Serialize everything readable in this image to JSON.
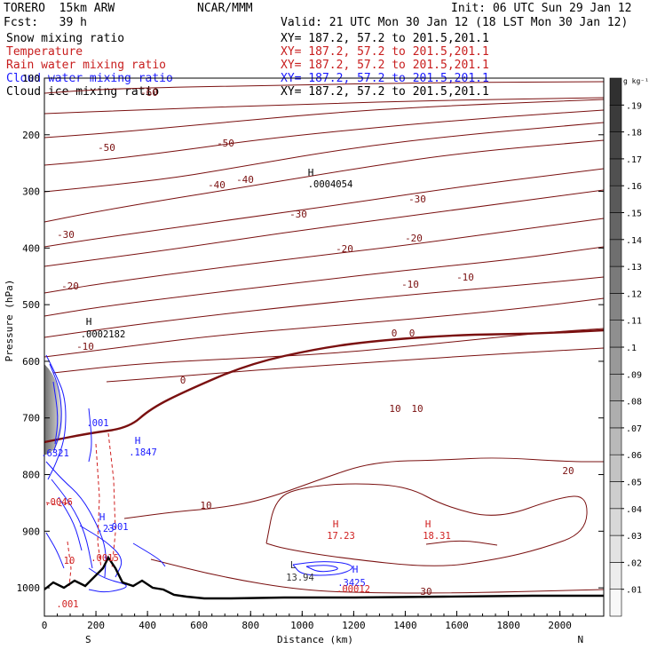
{
  "header": {
    "model": "TORERO  15km ARW",
    "center": "NCAR/MMM",
    "init": "Init: 06 UTC Sun 29 Jan 12",
    "fcst": "Fcst:   39 h",
    "valid": "Valid: 21 UTC Mon 30 Jan 12 (18 LST Mon 30 Jan 12)"
  },
  "fields": [
    {
      "name": "Snow mixing ratio",
      "xy": "XY= 187.2, 57.2 to 201.5,201.1",
      "color": "#000000"
    },
    {
      "name": "Temperature",
      "xy": "XY= 187.2, 57.2 to 201.5,201.1",
      "color": "#c81e1e"
    },
    {
      "name": "Rain water mixing ratio",
      "xy": "XY= 187.2, 57.2 to 201.5,201.1",
      "color": "#c81e1e"
    },
    {
      "name": "Cloud water mixing ratio",
      "xy": "XY= 187.2, 57.2 to 201.5,201.1",
      "color": "#1a1aff"
    },
    {
      "name": "Cloud ice mixing ratio",
      "xy": "XY= 187.2, 57.2 to 201.5,201.1",
      "color": "#000000"
    }
  ],
  "chart_data": {
    "type": "cross-section",
    "xlabel": "Distance (km)",
    "ylabel": "Pressure (hPa)",
    "xlim": [
      0,
      2170
    ],
    "ylim": [
      1050,
      100
    ],
    "x_ticks": [
      0,
      200,
      400,
      600,
      800,
      1000,
      1200,
      1400,
      1600,
      1800,
      2000
    ],
    "y_ticks": [
      100,
      200,
      300,
      400,
      500,
      600,
      700,
      800,
      900,
      1000
    ],
    "end_labels": {
      "left": "S",
      "right": "N"
    },
    "colorbar": {
      "unit": "g kg⁻¹",
      "levels": [
        ".01",
        ".02",
        ".03",
        ".04",
        ".05",
        ".06",
        ".07",
        ".08",
        ".09",
        ".1",
        ".11",
        ".12",
        ".13",
        ".14",
        ".15",
        ".16",
        ".17",
        ".18",
        ".19"
      ]
    },
    "temperature_labels": [
      "-60",
      "-50",
      "-50",
      "-40",
      "-40",
      "-30",
      "-30",
      "-30",
      "-20",
      "-20",
      "-20",
      "-10",
      "-10",
      "-10",
      "0",
      "0",
      "0",
      "10",
      "10",
      "10",
      "20",
      "30"
    ],
    "extrema_labels": [
      {
        "type": "H",
        "value": ".0004054"
      },
      {
        "type": "H",
        "value": ".0002182"
      },
      {
        "type": "H",
        "value": ".1847"
      },
      {
        "type": "H",
        "value": "17.23"
      },
      {
        "type": "H",
        "value": "18.31"
      },
      {
        "type": "H",
        "value": ".23"
      },
      {
        "type": "L",
        "value": "13.94"
      },
      {
        "type": "H",
        "value": ".3425"
      },
      {
        "type": "value",
        "value": ".00012"
      },
      {
        "type": "value",
        "value": ".6321"
      },
      {
        "type": "value",
        "value": ".001"
      },
      {
        "type": "value",
        "value": ".001"
      },
      {
        "type": "value",
        "value": ".001"
      },
      {
        "type": "value",
        "value": ".0046"
      },
      {
        "type": "value",
        "value": ".0015"
      },
      {
        "type": "value",
        "value": "10"
      }
    ]
  }
}
